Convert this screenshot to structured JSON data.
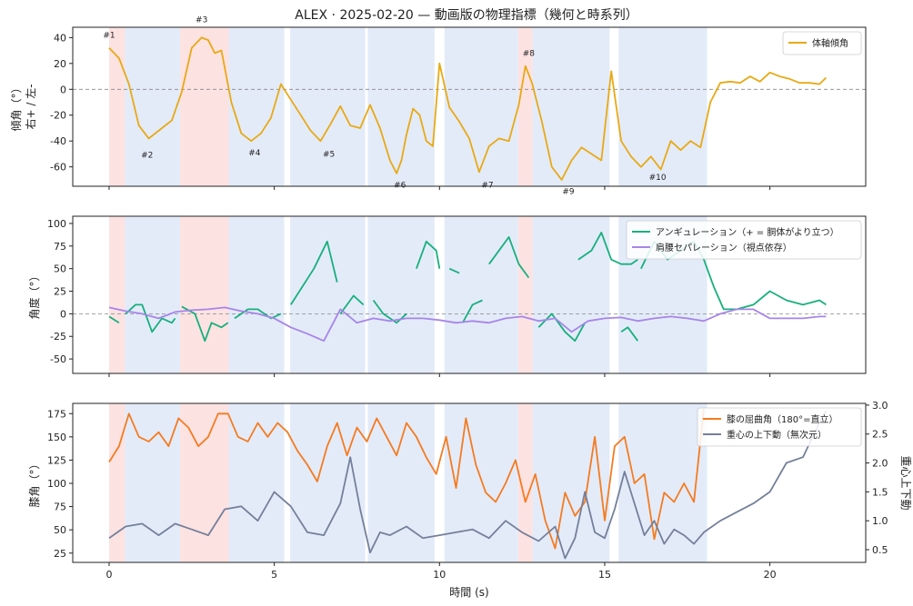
{
  "chart_data": {
    "title": "ALEX · 2025-02-20 — 動画版の物理指標（幾何と時系列）",
    "xlabel": "時間 (s)",
    "x_ticks": [
      0,
      5,
      10,
      15,
      20
    ],
    "xlim": [
      -1.1,
      22.9
    ],
    "phase_bands": [
      {
        "x0": 0.0,
        "x1": 0.48,
        "color": "#fde2e2"
      },
      {
        "x0": 0.48,
        "x1": 2.15,
        "color": "#e3ebf9"
      },
      {
        "x0": 2.15,
        "x1": 3.62,
        "color": "#fde2e2"
      },
      {
        "x0": 3.62,
        "x1": 5.3,
        "color": "#e3ebf9"
      },
      {
        "x0": 5.48,
        "x1": 7.75,
        "color": "#e3ebf9"
      },
      {
        "x0": 7.83,
        "x1": 9.85,
        "color": "#e3ebf9"
      },
      {
        "x0": 10.15,
        "x1": 12.38,
        "color": "#e3ebf9"
      },
      {
        "x0": 12.38,
        "x1": 12.82,
        "color": "#fde2e2"
      },
      {
        "x0": 12.82,
        "x1": 15.15,
        "color": "#e3ebf9"
      },
      {
        "x0": 15.42,
        "x1": 18.1,
        "color": "#e3ebf9"
      }
    ],
    "panels": [
      {
        "type": "line",
        "ylabel": [
          "傾角（°）",
          "右+ / 左-"
        ],
        "ylim": [
          -75,
          48
        ],
        "y_ticks": [
          40,
          20,
          0,
          -20,
          -40,
          -60
        ],
        "zero_line": true,
        "legend": "top-right",
        "series": [
          {
            "name": "体軸傾角",
            "color": "#e8a913",
            "x": [
              0,
              0.3,
              0.6,
              0.9,
              1.2,
              1.6,
              1.9,
              2.2,
              2.5,
              2.8,
              3.0,
              3.2,
              3.4,
              3.7,
              4.0,
              4.3,
              4.6,
              4.9,
              5.2,
              5.5,
              5.8,
              6.1,
              6.4,
              6.7,
              7.0,
              7.3,
              7.6,
              7.9,
              8.2,
              8.5,
              8.7,
              8.85,
              9.0,
              9.2,
              9.4,
              9.6,
              9.8,
              10.0,
              10.3,
              10.6,
              10.9,
              11.2,
              11.5,
              11.8,
              12.1,
              12.4,
              12.6,
              12.8,
              13.1,
              13.4,
              13.7,
              14.0,
              14.3,
              14.6,
              14.9,
              15.2,
              15.5,
              15.8,
              16.1,
              16.4,
              16.7,
              17.0,
              17.3,
              17.6,
              17.9,
              18.2,
              18.5,
              18.8,
              19.1,
              19.4,
              19.7,
              20.0,
              20.3,
              20.6,
              20.9,
              21.2,
              21.5,
              21.7
            ],
            "y": [
              32,
              24,
              4,
              -28,
              -38,
              -30,
              -24,
              -2,
              32,
              40,
              38,
              28,
              30,
              -10,
              -34,
              -40,
              -34,
              -22,
              4,
              -8,
              -20,
              -32,
              -40,
              -27,
              -13,
              -28,
              -30,
              -12,
              -30,
              -55,
              -65,
              -55,
              -35,
              -15,
              -20,
              -40,
              -44,
              20,
              -14,
              -25,
              -38,
              -64,
              -44,
              -38,
              -40,
              -12,
              18,
              5,
              -25,
              -60,
              -70,
              -55,
              -45,
              -50,
              -55,
              14,
              -40,
              -52,
              -60,
              -52,
              -62,
              -40,
              -47,
              -40,
              -45,
              -10,
              5,
              6,
              5,
              10,
              6,
              13,
              10,
              8,
              5,
              5,
              4,
              9
            ]
          }
        ],
        "annotations": [
          {
            "text": "#1",
            "x": 0.0,
            "y": 40
          },
          {
            "text": "#2",
            "x": 1.15,
            "y": -53
          },
          {
            "text": "#3",
            "x": 2.8,
            "y": 52
          },
          {
            "text": "#4",
            "x": 4.4,
            "y": -51
          },
          {
            "text": "#5",
            "x": 6.65,
            "y": -52
          },
          {
            "text": "#6",
            "x": 8.8,
            "y": -76
          },
          {
            "text": "#7",
            "x": 11.45,
            "y": -76
          },
          {
            "text": "#8",
            "x": 12.7,
            "y": 26
          },
          {
            "text": "#9",
            "x": 13.9,
            "y": -81
          },
          {
            "text": "#10",
            "x": 16.6,
            "y": -70
          }
        ]
      },
      {
        "type": "line",
        "ylabel": [
          "角度（°）"
        ],
        "ylim": [
          -66,
          108
        ],
        "y_ticks": [
          100,
          75,
          50,
          25,
          0,
          -25,
          -50
        ],
        "zero_line": true,
        "legend": "top-right",
        "series": [
          {
            "name": "アンギュレーション（+ = 胴体がより立つ）",
            "color": "#17b07d",
            "segments": [
              {
                "x": [
                  0,
                  0.3
                ],
                "y": [
                  -3,
                  -10
                ]
              },
              {
                "x": [
                  0.5,
                  0.8,
                  1.0,
                  1.3,
                  1.6,
                  1.9,
                  2.0
                ],
                "y": [
                  0,
                  10,
                  10,
                  -20,
                  -5,
                  -10,
                  -5
                ]
              },
              {
                "x": [
                  2.2,
                  2.6,
                  2.9,
                  3.1,
                  3.4,
                  3.6
                ],
                "y": [
                  8,
                  0,
                  -30,
                  -10,
                  -15,
                  -10
                ]
              },
              {
                "x": [
                  3.8,
                  4.2,
                  4.5,
                  4.9,
                  5.2
                ],
                "y": [
                  -5,
                  5,
                  5,
                  -5,
                  0
                ]
              },
              {
                "x": [
                  5.5,
                  6.2,
                  6.6,
                  6.9
                ],
                "y": [
                  10,
                  50,
                  80,
                  35
                ]
              },
              {
                "x": [
                  7.0,
                  7.2,
                  7.4,
                  7.7
                ],
                "y": [
                  0,
                  10,
                  20,
                  10
                ]
              },
              {
                "x": [
                  8.0,
                  8.3,
                  8.7,
                  9.0
                ],
                "y": [
                  15,
                  0,
                  -10,
                  0
                ]
              },
              {
                "x": [
                  9.3,
                  9.6,
                  9.9,
                  10.0
                ],
                "y": [
                  50,
                  80,
                  70,
                  50
                ]
              },
              {
                "x": [
                  10.3,
                  10.6
                ],
                "y": [
                  50,
                  45
                ]
              },
              {
                "x": [
                  10.7,
                  11.0,
                  11.3
                ],
                "y": [
                  -10,
                  10,
                  15
                ]
              },
              {
                "x": [
                  11.5,
                  11.8,
                  12.1,
                  12.4,
                  12.7
                ],
                "y": [
                  55,
                  70,
                  85,
                  55,
                  40
                ]
              },
              {
                "x": [
                  13.0,
                  13.4,
                  13.8,
                  14.1,
                  14.4
                ],
                "y": [
                  -15,
                  0,
                  -20,
                  -30,
                  -10
                ]
              },
              {
                "x": [
                  14.2,
                  14.6,
                  14.9,
                  15.2,
                  15.5,
                  15.8,
                  16.0
                ],
                "y": [
                  60,
                  70,
                  90,
                  60,
                  55,
                  55,
                  60
                ]
              },
              {
                "x": [
                  15.5,
                  15.7,
                  16.0
                ],
                "y": [
                  -20,
                  -15,
                  -30
                ]
              },
              {
                "x": [
                  16.1,
                  16.5,
                  16.9,
                  17.3,
                  17.7,
                  18.0,
                  18.3,
                  18.6,
                  19.0,
                  19.5,
                  20.0,
                  20.5,
                  21.0,
                  21.5,
                  21.7
                ],
                "y": [
                  50,
                  80,
                  60,
                  70,
                  80,
                  60,
                  30,
                  5,
                  5,
                  10,
                  25,
                  15,
                  10,
                  15,
                  10
                ]
              }
            ]
          },
          {
            "name": "肩腰セパレーション（視点依存）",
            "color": "#a785e8",
            "x": [
              0,
              0.5,
              1.0,
              1.5,
              2.0,
              2.5,
              3.0,
              3.5,
              4.0,
              4.5,
              5.0,
              5.5,
              6.0,
              6.5,
              7.0,
              7.5,
              8.0,
              8.5,
              9.0,
              9.5,
              10.0,
              10.5,
              11.0,
              11.5,
              12.0,
              12.5,
              13.0,
              13.5,
              14.0,
              14.5,
              15.0,
              15.5,
              16.0,
              16.5,
              17.0,
              17.5,
              18.0,
              18.5,
              19.0,
              19.5,
              20.0,
              20.5,
              21.0,
              21.5,
              21.7
            ],
            "y": [
              7,
              3,
              0,
              -5,
              2,
              4,
              5,
              7,
              3,
              0,
              -5,
              -15,
              -22,
              -30,
              5,
              -10,
              -5,
              -8,
              -5,
              -5,
              -7,
              -10,
              -8,
              -10,
              -5,
              -3,
              -8,
              -5,
              -20,
              -8,
              -5,
              -4,
              -8,
              -5,
              -3,
              -5,
              -8,
              0,
              5,
              5,
              -5,
              -5,
              -5,
              -3,
              -3
            ]
          }
        ]
      },
      {
        "type": "line",
        "ylabel": [
          "膝角（°）"
        ],
        "y2label": "重心上下動",
        "ylim": [
          15,
          186
        ],
        "y_ticks": [
          175,
          150,
          125,
          100,
          75,
          50,
          25
        ],
        "y2lim": [
          0.28,
          3.03
        ],
        "y2_ticks": [
          3.0,
          2.5,
          2.0,
          1.5,
          1.0,
          0.5
        ],
        "legend": "top-right",
        "series": [
          {
            "name": "膝の屈曲角（180°=直立）",
            "color": "#f57b1f",
            "axis": "left",
            "x": [
              0,
              0.3,
              0.6,
              0.9,
              1.2,
              1.5,
              1.8,
              2.1,
              2.4,
              2.7,
              3.0,
              3.3,
              3.6,
              3.9,
              4.2,
              4.5,
              4.8,
              5.1,
              5.4,
              5.7,
              6.0,
              6.3,
              6.6,
              6.9,
              7.2,
              7.5,
              7.8,
              8.1,
              8.4,
              8.7,
              9.0,
              9.3,
              9.6,
              9.9,
              10.2,
              10.5,
              10.8,
              11.1,
              11.4,
              11.7,
              12.0,
              12.3,
              12.6,
              12.9,
              13.2,
              13.5,
              13.8,
              14.1,
              14.4,
              14.7,
              15.0,
              15.3,
              15.6,
              15.9,
              16.2,
              16.5,
              16.8,
              17.1,
              17.4,
              17.7,
              18.0
            ],
            "y": [
              123,
              140,
              175,
              150,
              145,
              155,
              140,
              170,
              160,
              140,
              150,
              175,
              175,
              150,
              145,
              165,
              150,
              165,
              155,
              135,
              120,
              102,
              140,
              165,
              130,
              160,
              145,
              170,
              150,
              130,
              165,
              150,
              128,
              110,
              150,
              95,
              170,
              120,
              90,
              80,
              100,
              125,
              80,
              110,
              60,
              30,
              90,
              65,
              80,
              150,
              60,
              140,
              150,
              100,
              110,
              40,
              90,
              80,
              100,
              80,
              180
            ]
          },
          {
            "name": "重心の上下動（無次元）",
            "color": "#74809a",
            "axis": "right",
            "x": [
              0,
              0.5,
              1.0,
              1.5,
              2.0,
              2.5,
              3.0,
              3.5,
              4.0,
              4.5,
              5.0,
              5.5,
              6.0,
              6.5,
              7.0,
              7.3,
              7.6,
              7.9,
              8.2,
              8.5,
              9.0,
              9.5,
              10.0,
              10.5,
              11.0,
              11.5,
              12.0,
              12.5,
              13.0,
              13.5,
              13.8,
              14.1,
              14.4,
              14.7,
              15.0,
              15.3,
              15.6,
              15.9,
              16.2,
              16.5,
              16.8,
              17.1,
              17.4,
              17.7,
              18.0,
              18.5,
              19.0,
              19.5,
              20.0,
              20.5,
              21.0,
              21.5,
              21.7
            ],
            "y": [
              0.7,
              0.9,
              0.95,
              0.75,
              0.95,
              0.85,
              0.75,
              1.2,
              1.25,
              1.0,
              1.5,
              1.25,
              0.8,
              0.75,
              1.3,
              2.1,
              1.2,
              0.45,
              0.8,
              0.75,
              0.9,
              0.7,
              0.75,
              0.8,
              0.85,
              0.7,
              1.0,
              0.8,
              0.65,
              0.9,
              0.35,
              0.7,
              1.5,
              0.8,
              0.7,
              1.2,
              1.85,
              1.3,
              0.75,
              1.0,
              0.6,
              0.85,
              0.75,
              0.6,
              0.8,
              1.0,
              1.15,
              1.3,
              1.5,
              2.0,
              2.1,
              2.7,
              2.9
            ]
          }
        ]
      }
    ]
  }
}
